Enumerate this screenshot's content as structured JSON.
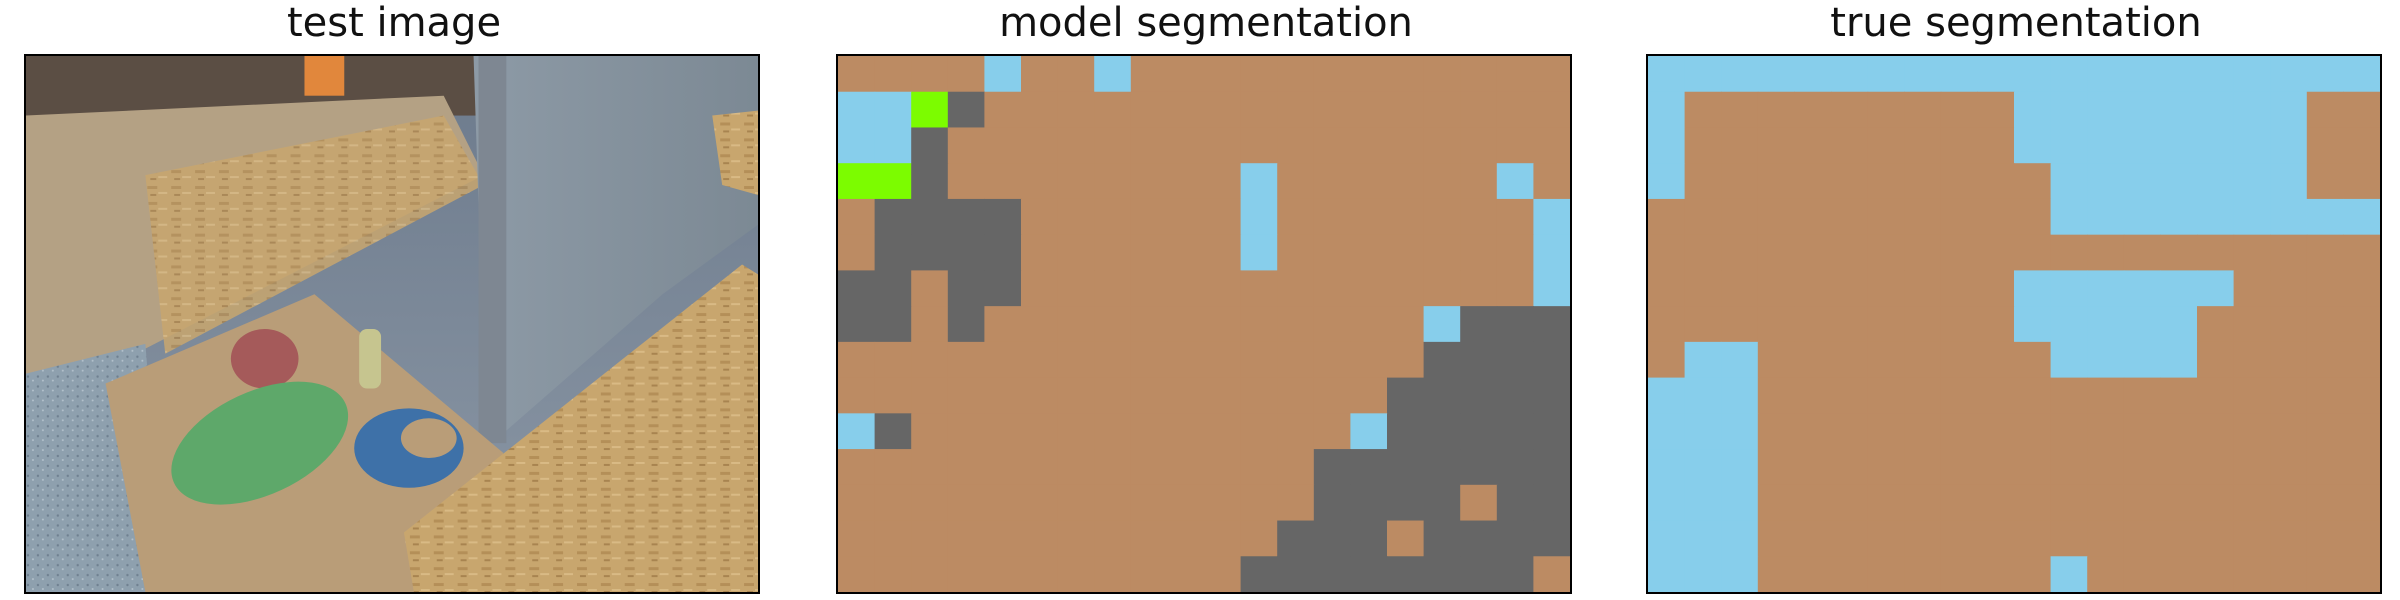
{
  "panels": {
    "test": {
      "title": "test image"
    },
    "model": {
      "title": "model segmentation"
    },
    "true": {
      "title": "true segmentation"
    }
  },
  "colors": {
    "brown": "#bc8b63",
    "sky": "#87ceeb",
    "gray": "#666666",
    "green": "#7cfc00"
  },
  "grid": {
    "cols": 20,
    "rows": 15
  },
  "legend_codes": {
    "B": "brown",
    "S": "sky",
    "G": "gray",
    "L": "green"
  },
  "model_segmentation": [
    "BBBBSBBSBBBBBBBBBBBB",
    "SSLGBBBBBBBBBBBBBBBB",
    "SSGBBBBBBBBBBBBBBBBB",
    "LLGBBBBBBBBSBBBBBBSB",
    "BGGGGBBBBBBSBBBBBBBS",
    "BGGGGBBBBBBSBBBBBBBS",
    "GGBGGBBBBBBBBBBBBBBS",
    "GGBGBBBBBBBBBBBBSGGG",
    "BBBBBBBBBBBBBBBBGGGG",
    "BBBBBBBBBBBBBBBGGGGG",
    "SGBBBBBBBBBBBBSGGGGG",
    "BBBBBBBBBBBBBGGGGGGG",
    "BBBBBBBBBBBBBGGGGBGG",
    "BBBBBBBBBBBBGGGBGGGG",
    "BBBBBBBBBBBGGGGGGGGB"
  ],
  "true_segmentation": [
    "SSSSSSSSSSSSSSSSSSSS",
    "SBBBBBBBBBSSSSSSSSBB",
    "SBBBBBBBBBSSSSSSSSBB",
    "SBBBBBBBBBBSSSSSSSBB",
    "BBBBBBBBBBBSSSSSSSSS",
    "BBBBBBBBBBBBBBBBBBBB",
    "BBBBBBBBBBSSSSSSBBBB",
    "BBBBBBBBBBSSSSSBBBBB",
    "BSSBBBBBBBBSSSSBBBBB",
    "SSSBBBBBBBBBBBBBBBBB",
    "SSSBBBBBBBBBBBBBBBBB",
    "SSSBBBBBBBBBBBBBBBBB",
    "SSSBBBBBBBBBBBBBBBBB",
    "SSSBBBBBBBBBBBBBBBBB",
    "SSSBBBBBBBBSBBBBBBBB"
  ]
}
